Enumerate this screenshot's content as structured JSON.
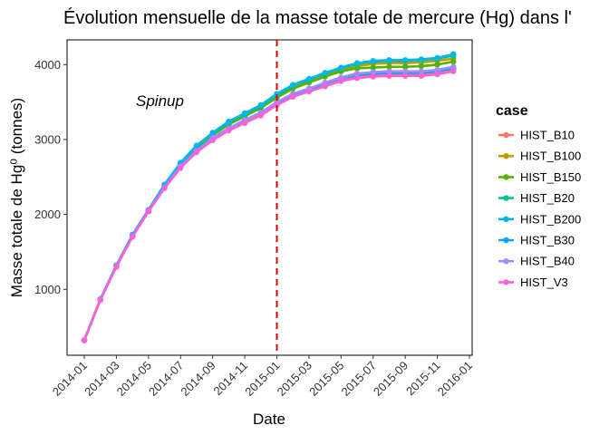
{
  "chart_data": {
    "type": "line",
    "title": "Évolution mensuelle de la masse totale de mercure (Hg) dans l'",
    "xlabel": "Date",
    "ylabel": "Masse totale de Hg⁰ (tonnes)",
    "x_ticks": [
      "2014-01",
      "2014-03",
      "2014-05",
      "2014-07",
      "2014-09",
      "2014-11",
      "2015-01",
      "2015-03",
      "2015-05",
      "2015-07",
      "2015-09",
      "2015-11",
      "2016-01"
    ],
    "y_ticks": [
      1000,
      2000,
      3000,
      4000
    ],
    "ylim": [
      120,
      4330
    ],
    "legend_title": "case",
    "legend_position": "right",
    "grid": false,
    "annotation": "Spinup",
    "vline": {
      "x": "2015-01-01",
      "color": "#e00000",
      "style": "dashed"
    },
    "dates": [
      "2014-01",
      "2014-02",
      "2014-03",
      "2014-04",
      "2014-05",
      "2014-06",
      "2014-07",
      "2014-08",
      "2014-09",
      "2014-10",
      "2014-11",
      "2014-12",
      "2015-01",
      "2015-02",
      "2015-03",
      "2015-04",
      "2015-05",
      "2015-06",
      "2015-07",
      "2015-08",
      "2015-09",
      "2015-10",
      "2015-11",
      "2015-12"
    ],
    "series": [
      {
        "name": "HIST_B10",
        "color": "#F8766D",
        "values": [
          320,
          860,
          1310,
          1710,
          2040,
          2360,
          2630,
          2840,
          3000,
          3130,
          3240,
          3340,
          3470,
          3580,
          3650,
          3730,
          3810,
          3850,
          3870,
          3880,
          3880,
          3880,
          3900,
          3940
        ]
      },
      {
        "name": "HIST_B100",
        "color": "#C49A00",
        "values": [
          320,
          860,
          1320,
          1720,
          2060,
          2380,
          2670,
          2900,
          3070,
          3210,
          3320,
          3430,
          3570,
          3700,
          3780,
          3860,
          3930,
          3980,
          4010,
          4020,
          4020,
          4030,
          4050,
          4080
        ]
      },
      {
        "name": "HIST_B150",
        "color": "#53B400",
        "values": [
          320,
          860,
          1320,
          1720,
          2060,
          2380,
          2670,
          2890,
          3060,
          3200,
          3310,
          3420,
          3560,
          3680,
          3760,
          3840,
          3910,
          3950,
          3960,
          3970,
          3970,
          3980,
          4000,
          4040
        ]
      },
      {
        "name": "HIST_B20",
        "color": "#00C094",
        "values": [
          320,
          860,
          1320,
          1720,
          2060,
          2390,
          2680,
          2910,
          3080,
          3230,
          3340,
          3450,
          3590,
          3720,
          3800,
          3880,
          3950,
          4010,
          4040,
          4050,
          4050,
          4060,
          4080,
          4120
        ]
      },
      {
        "name": "HIST_B200",
        "color": "#00B6EB",
        "values": [
          320,
          870,
          1320,
          1730,
          2060,
          2400,
          2690,
          2920,
          3090,
          3240,
          3350,
          3460,
          3610,
          3730,
          3810,
          3890,
          3960,
          4020,
          4050,
          4060,
          4060,
          4070,
          4090,
          4140
        ]
      },
      {
        "name": "HIST_B30",
        "color": "#06A4FF",
        "values": [
          320,
          860,
          1310,
          1710,
          2050,
          2370,
          2640,
          2860,
          3020,
          3150,
          3260,
          3360,
          3490,
          3600,
          3670,
          3750,
          3820,
          3860,
          3880,
          3890,
          3890,
          3890,
          3910,
          3950
        ]
      },
      {
        "name": "HIST_B40",
        "color": "#A58AFF",
        "values": [
          320,
          860,
          1310,
          1710,
          2050,
          2360,
          2640,
          2850,
          3020,
          3150,
          3260,
          3360,
          3500,
          3610,
          3680,
          3760,
          3830,
          3880,
          3900,
          3910,
          3910,
          3910,
          3930,
          3970
        ]
      },
      {
        "name": "HIST_V3",
        "color": "#FB61D7",
        "values": [
          320,
          860,
          1300,
          1700,
          2040,
          2350,
          2620,
          2830,
          2990,
          3120,
          3220,
          3320,
          3460,
          3570,
          3640,
          3710,
          3780,
          3820,
          3840,
          3850,
          3850,
          3850,
          3870,
          3910
        ]
      }
    ]
  }
}
